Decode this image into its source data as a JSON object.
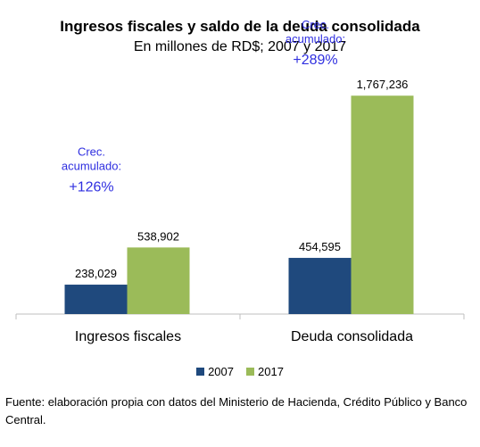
{
  "title": "Ingresos fiscales y saldo de la deuda consolidada",
  "subtitle": "En millones de RD$; 2007 y 2017",
  "chart_data": {
    "type": "bar",
    "categories": [
      "Ingresos fiscales",
      "Deuda consolidada"
    ],
    "series": [
      {
        "name": "2007",
        "values": [
          238029,
          454595
        ],
        "labels": [
          "238,029",
          "454,595"
        ],
        "color": "#1F497D"
      },
      {
        "name": "2017",
        "values": [
          538902,
          1767236
        ],
        "labels": [
          "538,902",
          "1,767,236"
        ],
        "color": "#9BBB59"
      }
    ],
    "ylim": [
      0,
      2000000
    ],
    "grid": false,
    "legend_position": "bottom",
    "annotations": [
      {
        "category": "Ingresos fiscales",
        "line1": "Crec.",
        "line2": "acumulado:",
        "value": "+126%"
      },
      {
        "category": "Deuda consolidada",
        "line1": "Crec.",
        "line2": "acumulado:",
        "value": "+289%"
      }
    ],
    "annotation_color": "#2F2FE0"
  },
  "source": "Fuente: elaboración propia con datos del Ministerio de Hacienda, Crédito Público y Banco Central."
}
